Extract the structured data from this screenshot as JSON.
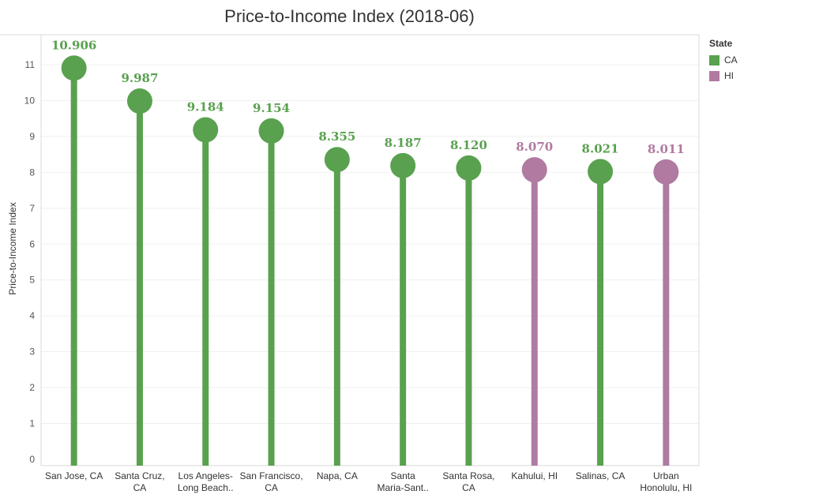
{
  "chart_data": {
    "type": "lollipop",
    "title": "Price-to-Income Index (2018-06)",
    "ylabel": "Price-to-Income Index",
    "xlabel": "",
    "ylim": [
      0,
      11.5
    ],
    "yticks": [
      0,
      1,
      2,
      3,
      4,
      5,
      6,
      7,
      8,
      9,
      10,
      11
    ],
    "grid": true,
    "legend": {
      "title": "State",
      "placement": "right",
      "entries": [
        {
          "label": "CA",
          "color": "#59a14f"
        },
        {
          "label": "HI",
          "color": "#b07aa1"
        }
      ]
    },
    "categories": [
      {
        "label": [
          "San Jose, CA"
        ],
        "value": 10.906,
        "value_label": "10.906",
        "state": "CA"
      },
      {
        "label": [
          "Santa Cruz,",
          "CA"
        ],
        "value": 9.987,
        "value_label": "9.987",
        "state": "CA"
      },
      {
        "label": [
          "Los Angeles-",
          "Long Beach.."
        ],
        "value": 9.184,
        "value_label": "9.184",
        "state": "CA"
      },
      {
        "label": [
          "San Francisco,",
          "CA"
        ],
        "value": 9.154,
        "value_label": "9.154",
        "state": "CA"
      },
      {
        "label": [
          "Napa, CA"
        ],
        "value": 8.355,
        "value_label": "8.355",
        "state": "CA"
      },
      {
        "label": [
          "Santa",
          "Maria-Sant.."
        ],
        "value": 8.187,
        "value_label": "8.187",
        "state": "CA"
      },
      {
        "label": [
          "Santa Rosa,",
          "CA"
        ],
        "value": 8.12,
        "value_label": "8.120",
        "state": "CA"
      },
      {
        "label": [
          "Kahului, HI"
        ],
        "value": 8.07,
        "value_label": "8.070",
        "state": "HI"
      },
      {
        "label": [
          "Salinas, CA"
        ],
        "value": 8.021,
        "value_label": "8.021",
        "state": "CA"
      },
      {
        "label": [
          "Urban",
          "Honolulu, HI"
        ],
        "value": 8.011,
        "value_label": "8.011",
        "state": "HI"
      }
    ]
  }
}
